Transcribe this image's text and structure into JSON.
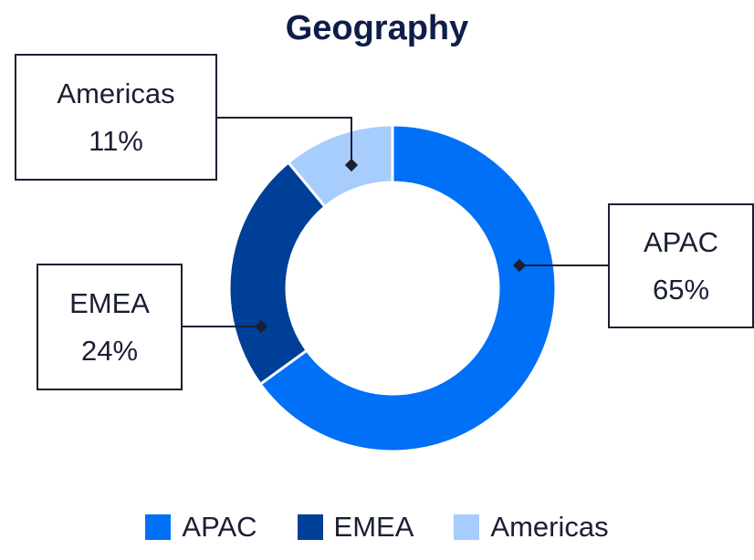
{
  "chart_data": {
    "type": "pie",
    "variant": "donut",
    "title": "Geography",
    "categories": [
      "APAC",
      "EMEA",
      "Americas"
    ],
    "values": [
      65,
      24,
      11
    ],
    "value_labels": [
      "65%",
      "24%",
      "11%"
    ],
    "unit": "%",
    "colors": [
      "#0070f6",
      "#003f97",
      "#a6cdfb"
    ],
    "legend_placement": "bottom"
  }
}
